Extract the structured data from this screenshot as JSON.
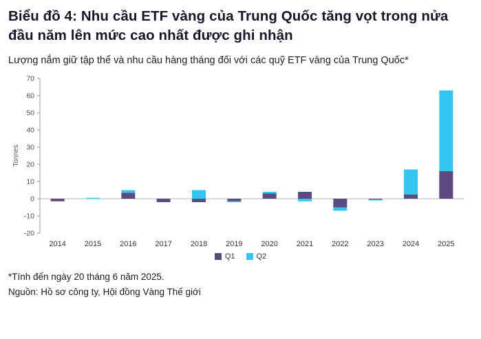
{
  "header": {
    "title": "Biểu đồ 4: Nhu cầu ETF vàng của Trung Quốc tăng vọt trong nửa đầu năm lên mức cao nhất được ghi nhận",
    "subtitle": "Lượng nắm giữ tập thể và nhu cầu hàng tháng đối với các quỹ ETF vàng của Trung Quốc*"
  },
  "chart_data": {
    "type": "bar",
    "stacked": true,
    "categories": [
      "2014",
      "2015",
      "2016",
      "2017",
      "2018",
      "2019",
      "2020",
      "2021",
      "2022",
      "2023",
      "2024",
      "2025"
    ],
    "series": [
      {
        "name": "Q1",
        "color": "#5b4b80",
        "values": [
          -1.5,
          0,
          3.5,
          -2,
          -2,
          -1.5,
          3,
          4,
          -5,
          -0.5,
          2.5,
          16
        ]
      },
      {
        "name": "Q2",
        "color": "#35c4f0",
        "values": [
          0,
          0.5,
          1.5,
          0,
          5,
          -0.5,
          1,
          -1.5,
          -2,
          -0.5,
          14.5,
          47
        ]
      }
    ],
    "title": "",
    "xlabel": "",
    "ylabel": "Tonnes",
    "ylim": [
      -20,
      70
    ],
    "ytick_step": 10,
    "grid": false,
    "legend_position": "bottom"
  },
  "footnotes": {
    "note": "*Tính đến ngày 20 tháng 6 năm 2025.",
    "source": "Nguồn: Hồ sơ công ty, Hội đồng Vàng Thế giới"
  }
}
